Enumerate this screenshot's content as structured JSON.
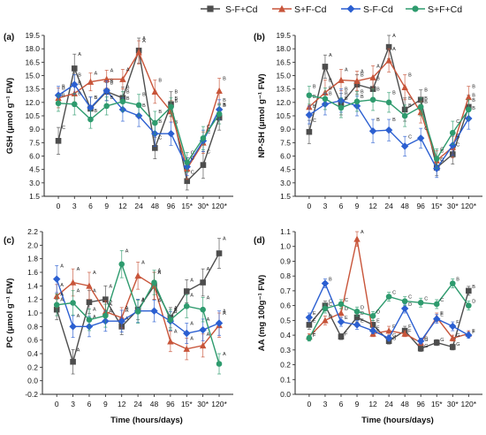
{
  "chart_data": {
    "series_styles": [
      {
        "name": "S-F+Cd",
        "color": "#4d4d4d",
        "marker": "square"
      },
      {
        "name": "S+F-Cd",
        "color": "#c8553a",
        "marker": "triangle"
      },
      {
        "name": "S-F-Cd",
        "color": "#2b5fd1",
        "marker": "diamond"
      },
      {
        "name": "S+F+Cd",
        "color": "#2e9b6e",
        "marker": "circle"
      }
    ],
    "x_categories": [
      "0",
      "3",
      "6",
      "9",
      "12",
      "24",
      "48",
      "96",
      "15*",
      "30*",
      "120*"
    ],
    "panels": [
      {
        "type": "line",
        "panel_label": "(a)",
        "ylabel": "GSH (μmol g⁻¹ FW)",
        "ylim": [
          1.5,
          19.5
        ],
        "yticks": [
          "1.5",
          "3.0",
          "4.5",
          "6.0",
          "7.5",
          "9.0",
          "10.5",
          "12.0",
          "13.5",
          "15.0",
          "16.5",
          "18.0",
          "19.5"
        ],
        "xlabel": "",
        "series": [
          {
            "name": "S-F+Cd",
            "values": [
              7.7,
              15.8,
              11.3,
              13.2,
              12.5,
              17.8,
              6.9,
              11.8,
              3.2,
              5.0,
              10.3
            ],
            "errors": [
              1.5,
              1.6,
              1.3,
              1.0,
              1.2,
              1.4,
              1.2,
              1.4,
              1.0,
              1.5,
              1.4
            ],
            "labels": [
              "C",
              "A",
              "B",
              "B",
              "B",
              "A",
              "C",
              "B",
              "C",
              "C",
              "B"
            ]
          },
          {
            "name": "S+F-Cd",
            "values": [
              12.5,
              13.0,
              14.3,
              14.6,
              14.6,
              17.6,
              13.2,
              11.0,
              4.6,
              7.5,
              13.3
            ],
            "errors": [
              1.1,
              1.2,
              1.0,
              1.0,
              1.1,
              1.3,
              1.3,
              1.2,
              1.2,
              1.2,
              1.4
            ],
            "labels": [
              "B",
              "B",
              "A",
              "A",
              "A",
              "A",
              "B",
              "B",
              "C",
              "C",
              "B"
            ]
          },
          {
            "name": "S-F-Cd",
            "values": [
              12.8,
              14.0,
              11.4,
              13.3,
              11.2,
              10.5,
              8.5,
              8.5,
              4.8,
              7.7,
              11.2
            ],
            "errors": [
              1.0,
              1.1,
              1.2,
              1.1,
              1.3,
              1.2,
              1.4,
              1.3,
              1.0,
              1.2,
              1.1
            ],
            "labels": [
              "B",
              "B",
              "B",
              "B",
              "B",
              "B",
              "B",
              "B",
              "C",
              "C",
              "B"
            ]
          },
          {
            "name": "S+F+Cd",
            "values": [
              11.9,
              11.8,
              10.1,
              11.6,
              12.1,
              11.7,
              9.7,
              11.5,
              5.3,
              8.0,
              10.7
            ],
            "errors": [
              0.9,
              1.2,
              1.0,
              1.0,
              1.1,
              1.2,
              1.3,
              1.0,
              1.1,
              1.3,
              1.1
            ],
            "labels": [
              "B",
              "B",
              "B",
              "B",
              "B",
              "B",
              "B",
              "B",
              "C",
              "C",
              "B"
            ]
          }
        ]
      },
      {
        "type": "line",
        "panel_label": "(b)",
        "ylabel": "NP-SH (μmol g⁻¹ FW)",
        "ylim": [
          1.5,
          19.5
        ],
        "yticks": [
          "1.5",
          "3.0",
          "4.5",
          "6.0",
          "7.5",
          "9.0",
          "10.5",
          "12.0",
          "13.5",
          "15.0",
          "16.5",
          "18.0",
          "19.5"
        ],
        "xlabel": "",
        "series": [
          {
            "name": "S-F+Cd",
            "values": [
              8.7,
              16.0,
              11.8,
              14.0,
              13.5,
              18.2,
              11.2,
              12.3,
              4.7,
              6.2,
              11.5
            ],
            "errors": [
              1.3,
              1.3,
              1.2,
              1.1,
              1.2,
              1.3,
              1.3,
              1.1,
              0.9,
              1.1,
              1.3
            ],
            "labels": [
              "C",
              "A",
              "B",
              "B",
              "B",
              "A",
              "B",
              "B",
              "C",
              "C",
              "B"
            ]
          },
          {
            "name": "S+F-Cd",
            "values": [
              11.5,
              13.1,
              14.5,
              14.4,
              14.8,
              16.7,
              13.7,
              10.9,
              5.5,
              7.0,
              12.6
            ],
            "errors": [
              1.2,
              1.4,
              1.2,
              1.1,
              1.3,
              1.3,
              1.4,
              1.2,
              1.1,
              1.2,
              1.2
            ],
            "labels": [
              "B",
              "B",
              "A",
              "A",
              "A",
              "A",
              "B",
              "B",
              "C",
              "C",
              "B"
            ]
          },
          {
            "name": "S-F-Cd",
            "values": [
              10.6,
              11.8,
              12.2,
              11.6,
              8.8,
              8.9,
              7.1,
              8.0,
              4.6,
              7.2,
              10.2
            ],
            "errors": [
              1.0,
              1.2,
              1.3,
              1.1,
              1.3,
              1.2,
              1.1,
              1.1,
              1.0,
              1.1,
              1.2
            ],
            "labels": [
              "B",
              "B",
              "B",
              "B",
              "B",
              "B",
              "C",
              "C",
              "C",
              "C",
              "B"
            ]
          },
          {
            "name": "S+F+Cd",
            "values": [
              12.8,
              12.4,
              11.4,
              12.1,
              12.3,
              12.0,
              10.5,
              11.5,
              5.7,
              8.6,
              11.2
            ],
            "errors": [
              1.0,
              1.2,
              1.1,
              1.1,
              1.2,
              1.1,
              1.2,
              1.0,
              1.1,
              1.3,
              1.1
            ],
            "labels": [
              "B",
              "B",
              "B",
              "B",
              "B",
              "B",
              "B",
              "B",
              "C",
              "C",
              "B"
            ]
          }
        ]
      },
      {
        "type": "line",
        "panel_label": "(c)",
        "ylabel": "PC (μmol g⁻¹ FW)",
        "ylim": [
          -0.2,
          2.2
        ],
        "yticks": [
          "-0.2",
          "0.0",
          "0.2",
          "0.4",
          "0.6",
          "0.8",
          "1.0",
          "1.2",
          "1.4",
          "1.6",
          "1.8",
          "2.0",
          "2.2"
        ],
        "xlabel": "Time (hours/days)",
        "series": [
          {
            "name": "S-F+Cd",
            "values": [
              1.05,
              0.28,
              1.16,
              1.2,
              0.8,
              1.05,
              1.4,
              0.93,
              1.32,
              1.45,
              1.88
            ],
            "errors": [
              0.15,
              0.18,
              0.17,
              0.2,
              0.12,
              0.15,
              0.2,
              0.15,
              0.17,
              0.2,
              0.22
            ],
            "labels": [
              "A",
              "A",
              "A",
              "A",
              "A",
              "A",
              "A",
              "A",
              "A",
              "A",
              "A"
            ]
          },
          {
            "name": "S+F-Cd",
            "values": [
              1.25,
              1.45,
              1.4,
              1.02,
              0.93,
              1.55,
              1.4,
              0.58,
              0.47,
              0.52,
              0.82
            ],
            "errors": [
              0.17,
              0.2,
              0.2,
              0.16,
              0.15,
              0.2,
              0.2,
              0.15,
              0.16,
              0.17,
              0.18
            ],
            "labels": [
              "A",
              "A",
              "A",
              "A",
              "A",
              "A",
              "A",
              "A",
              "A",
              "A",
              "A"
            ]
          },
          {
            "name": "S-F-Cd",
            "values": [
              1.5,
              0.8,
              0.8,
              0.88,
              0.88,
              1.03,
              1.03,
              0.88,
              0.7,
              0.75,
              0.85
            ],
            "errors": [
              0.2,
              0.16,
              0.15,
              0.15,
              0.16,
              0.17,
              0.16,
              0.14,
              0.15,
              0.16,
              0.18
            ],
            "labels": [
              "A",
              "A",
              "A",
              "A",
              "A",
              "A",
              "A",
              "A",
              "A",
              "A",
              "A"
            ]
          },
          {
            "name": "S+F+Cd",
            "values": [
              1.12,
              1.15,
              0.9,
              0.96,
              1.72,
              1.02,
              1.45,
              0.9,
              1.1,
              1.05,
              0.25
            ],
            "errors": [
              0.16,
              0.18,
              0.16,
              0.17,
              0.2,
              0.17,
              0.18,
              0.15,
              0.17,
              0.18,
              0.15
            ],
            "labels": [
              "A",
              "A",
              "A",
              "A",
              "A",
              "A",
              "A",
              "A",
              "A",
              "A",
              "A"
            ]
          }
        ]
      },
      {
        "type": "line",
        "panel_label": "(d)",
        "ylabel": "AA (mg 100g⁻¹ FW)",
        "ylim": [
          0.0,
          1.1
        ],
        "yticks": [
          "0.0",
          "0.1",
          "0.2",
          "0.3",
          "0.4",
          "0.5",
          "0.6",
          "0.7",
          "0.8",
          "0.9",
          "1.0",
          "1.1"
        ],
        "xlabel": "Time (hours/days)",
        "series": [
          {
            "name": "S-F+Cd",
            "values": [
              0.47,
              0.6,
              0.39,
              0.52,
              0.47,
              0.36,
              0.43,
              0.31,
              0.35,
              0.32,
              0.7
            ],
            "errors": [
              0.03,
              0.03,
              0.02,
              0.03,
              0.03,
              0.02,
              0.03,
              0.02,
              0.02,
              0.02,
              0.03
            ],
            "labels": [
              "E",
              "C",
              "F",
              "D",
              "E",
              "G",
              "F",
              "G",
              "G",
              "G",
              "B"
            ]
          },
          {
            "name": "S+F-Cd",
            "values": [
              0.39,
              0.5,
              0.55,
              1.05,
              0.41,
              0.43,
              0.41,
              0.35,
              0.52,
              0.38,
              0.41
            ],
            "errors": [
              0.02,
              0.03,
              0.03,
              0.05,
              0.02,
              0.03,
              0.02,
              0.02,
              0.03,
              0.02,
              0.02
            ],
            "labels": [
              "F",
              "D",
              "D",
              "A",
              "F",
              "F",
              "F",
              "G",
              "E",
              "G",
              "F"
            ]
          },
          {
            "name": "S-F-Cd",
            "values": [
              0.52,
              0.75,
              0.49,
              0.47,
              0.43,
              0.38,
              0.58,
              0.36,
              0.51,
              0.46,
              0.4
            ],
            "errors": [
              0.03,
              0.03,
              0.03,
              0.03,
              0.02,
              0.02,
              0.03,
              0.02,
              0.03,
              0.03,
              0.02
            ],
            "labels": [
              "E",
              "B",
              "E",
              "E",
              "F",
              "G",
              "D",
              "G",
              "E",
              "F",
              "F"
            ]
          },
          {
            "name": "S+F+Cd",
            "values": [
              0.38,
              0.58,
              0.61,
              0.56,
              0.53,
              0.66,
              0.63,
              0.62,
              0.61,
              0.75,
              0.6
            ],
            "errors": [
              0.02,
              0.03,
              0.03,
              0.03,
              0.03,
              0.03,
              0.03,
              0.03,
              0.03,
              0.03,
              0.03
            ],
            "labels": [
              "F",
              "C",
              "C",
              "D",
              "D",
              "C",
              "C",
              "C",
              "C",
              "B",
              "D"
            ]
          }
        ]
      }
    ]
  }
}
